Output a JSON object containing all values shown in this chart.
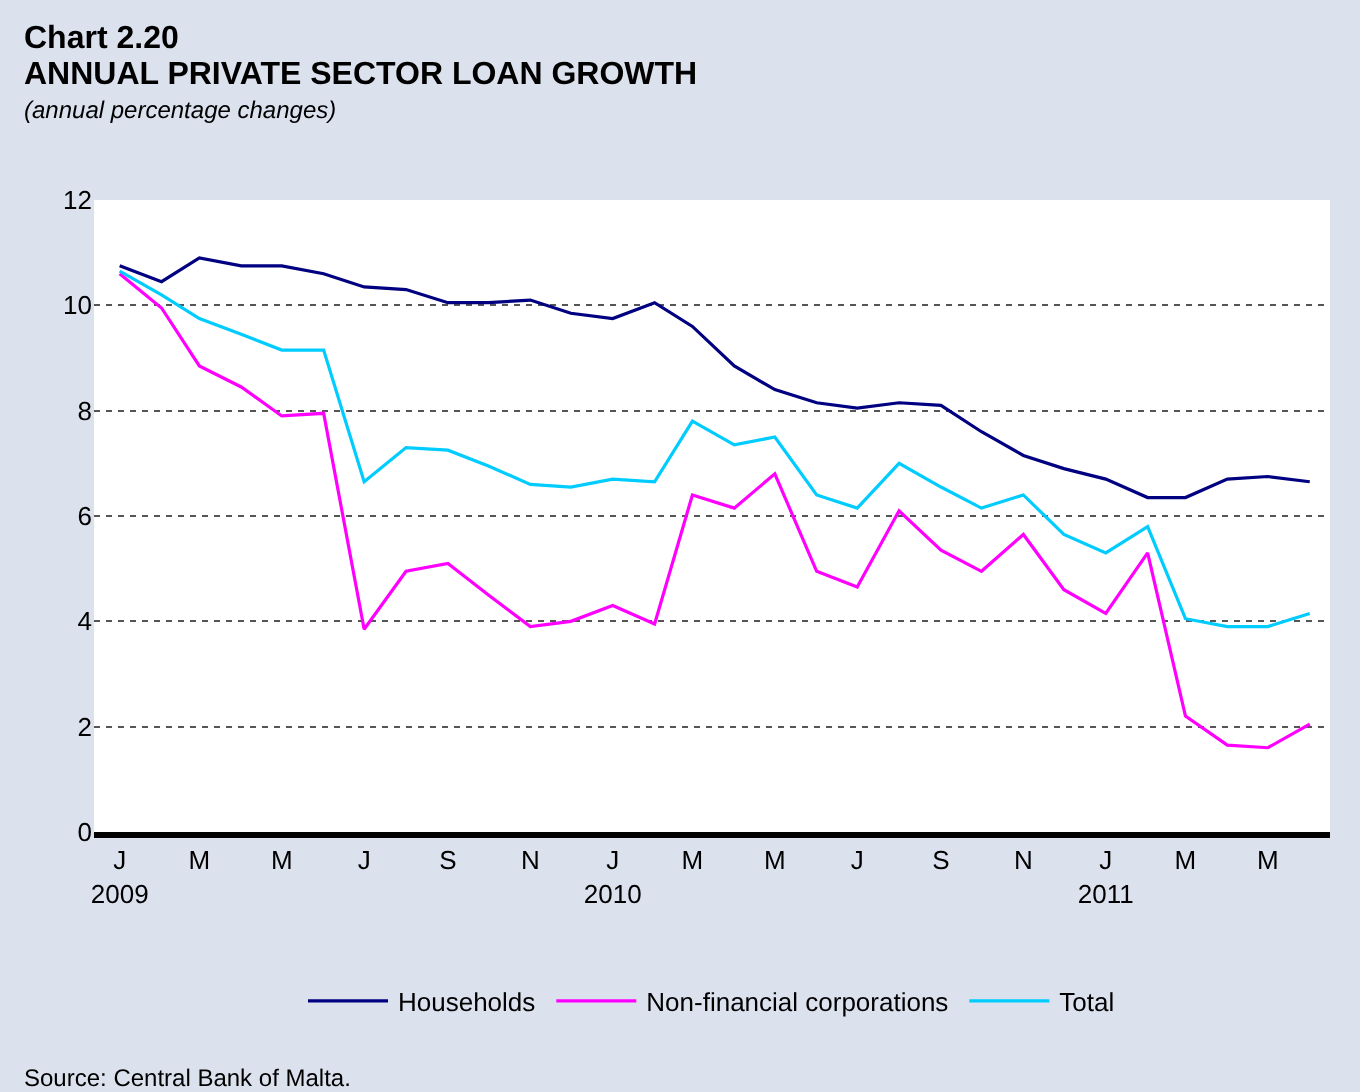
{
  "chart_data": {
    "type": "line",
    "title": "Chart 2.20",
    "subtitle": "ANNUAL PRIVATE SECTOR LOAN GROWTH",
    "ylabel": "(annual percentage changes)",
    "annotations": [
      "Source: Central Bank of Malta."
    ],
    "x": [
      "2009-01",
      "2009-02",
      "2009-03",
      "2009-04",
      "2009-05",
      "2009-06",
      "2009-07",
      "2009-08",
      "2009-09",
      "2009-10",
      "2009-11",
      "2009-12",
      "2010-01",
      "2010-02",
      "2010-03",
      "2010-04",
      "2010-05",
      "2010-06",
      "2010-07",
      "2010-08",
      "2010-09",
      "2010-10",
      "2010-11",
      "2010-12",
      "2011-01",
      "2011-02",
      "2011-03",
      "2011-04",
      "2011-05",
      "2011-06"
    ],
    "series": [
      {
        "name": "Households",
        "color": "#000080",
        "values": [
          10.75,
          10.45,
          10.9,
          10.75,
          10.75,
          10.6,
          10.35,
          10.3,
          10.05,
          10.05,
          10.1,
          9.85,
          9.75,
          10.05,
          9.6,
          8.85,
          8.4,
          8.15,
          8.05,
          8.15,
          8.1,
          7.6,
          7.15,
          6.9,
          6.7,
          6.35,
          6.35,
          6.7,
          6.75,
          6.65
        ]
      },
      {
        "name": "Non-financial corporations",
        "color": "#ff00ff",
        "values": [
          10.6,
          9.95,
          8.85,
          8.45,
          7.9,
          7.95,
          3.85,
          4.95,
          5.1,
          4.5,
          3.9,
          4.0,
          4.3,
          3.95,
          6.4,
          6.15,
          6.8,
          4.95,
          4.65,
          6.1,
          5.35,
          4.95,
          5.65,
          4.6,
          4.15,
          5.3,
          2.2,
          1.65,
          1.6,
          2.05
        ]
      },
      {
        "name": "Total",
        "color": "#00ccff",
        "values": [
          10.65,
          10.2,
          9.75,
          9.45,
          9.15,
          9.15,
          6.65,
          7.3,
          7.25,
          6.95,
          6.6,
          6.55,
          6.7,
          6.65,
          7.8,
          7.35,
          7.5,
          6.4,
          6.15,
          7.0,
          6.55,
          6.15,
          6.4,
          5.65,
          5.3,
          5.8,
          4.05,
          3.9,
          3.9,
          4.15
        ]
      }
    ],
    "xlim": [
      "2008-12-13",
      "2011-06-16"
    ],
    "xticks": [
      {
        "value": "2009-01",
        "label": "J\n2009"
      },
      {
        "value": "2009-03",
        "label": "M"
      },
      {
        "value": "2009-05",
        "label": "M"
      },
      {
        "value": "2009-07",
        "label": "J"
      },
      {
        "value": "2009-09",
        "label": "S"
      },
      {
        "value": "2009-11",
        "label": "N"
      },
      {
        "value": "2010-01",
        "label": "J\n2010"
      },
      {
        "value": "2010-03",
        "label": "M"
      },
      {
        "value": "2010-05",
        "label": "M"
      },
      {
        "value": "2010-07",
        "label": "J"
      },
      {
        "value": "2010-09",
        "label": "S"
      },
      {
        "value": "2010-11",
        "label": "N"
      },
      {
        "value": "2011-01",
        "label": "J\n2011"
      },
      {
        "value": "2011-03",
        "label": "M"
      },
      {
        "value": "2011-05",
        "label": "M"
      }
    ],
    "ylim": [
      0,
      12
    ],
    "yticks": [
      0,
      2,
      4,
      6,
      8,
      10,
      12
    ],
    "grid": "y",
    "legend": "bottom",
    "marker": "none",
    "line_style": "solid"
  }
}
